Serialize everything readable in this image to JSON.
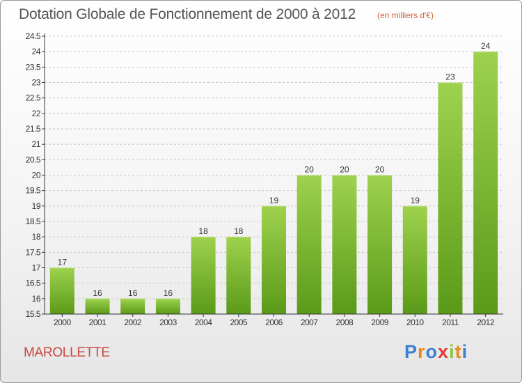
{
  "title": "Dotation Globale de Fonctionnement de 2000 à 2012",
  "unit_note": "(en milliers d'€)",
  "commune": "MAROLLETTE",
  "logo": {
    "text": "Proxiti",
    "letter_colors": [
      "#3e7fd2",
      "#e8891f",
      "#3e7fd2",
      "#e23a3a",
      "#8cc63f",
      "#e8891f",
      "#3e7fd2"
    ]
  },
  "colors": {
    "bar_top": "#9ed24e",
    "bar_bottom": "#5a9a18",
    "axis": "#333333",
    "grid": "#c8c8c8",
    "title": "#555555",
    "commune": "#c84840",
    "unit": "#d06040"
  },
  "chart_data": {
    "type": "bar",
    "title": "Dotation Globale de Fonctionnement de 2000 à 2012",
    "ylabel": "(en milliers d'€)",
    "xlabel": "",
    "categories": [
      "2000",
      "2001",
      "2002",
      "2003",
      "2004",
      "2005",
      "2006",
      "2007",
      "2008",
      "2009",
      "2010",
      "2011",
      "2012"
    ],
    "values": [
      17,
      16,
      16,
      16,
      18,
      18,
      19,
      20,
      20,
      20,
      19,
      23,
      24
    ],
    "labels": [
      "17",
      "16",
      "16",
      "16",
      "18",
      "18",
      "19",
      "20",
      "20",
      "20",
      "19",
      "23",
      "24"
    ],
    "ylim": [
      15.5,
      24.5
    ],
    "yticks": [
      15.5,
      16,
      16.5,
      17,
      17.5,
      18,
      18.5,
      19,
      19.5,
      20,
      20.5,
      21,
      21.5,
      22,
      22.5,
      23,
      23.5,
      24,
      24.5
    ],
    "ytick_labels": [
      "15.5",
      "16",
      "16.5",
      "17",
      "17.5",
      "18",
      "18.5",
      "19",
      "19.5",
      "20",
      "20.5",
      "21",
      "21.5",
      "22",
      "22.5",
      "23",
      "23.5",
      "24",
      "24.5"
    ],
    "grid": true
  }
}
